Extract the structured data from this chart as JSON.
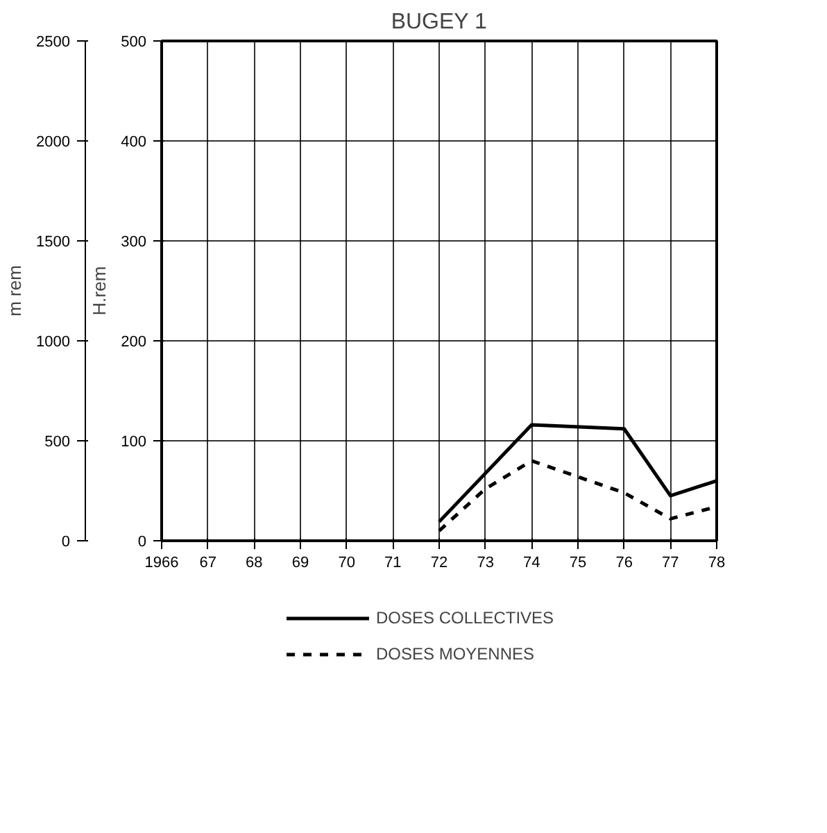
{
  "chart_data": {
    "type": "line",
    "title": "BUGEY 1",
    "ylabel": "H.rem",
    "y2label": "m rem",
    "categories": [
      "1966",
      "67",
      "68",
      "69",
      "70",
      "71",
      "72",
      "73",
      "74",
      "75",
      "76",
      "77",
      "78"
    ],
    "series": [
      {
        "name": "DOSES COLLECTIVES",
        "color": "#000000",
        "line_style": "solid",
        "values": [
          null,
          null,
          null,
          null,
          null,
          null,
          19,
          null,
          116,
          null,
          112,
          45,
          60
        ]
      },
      {
        "name": "DOSES MOYENNES",
        "color": "#000000",
        "line_style": "dashed",
        "axis": "y2",
        "values": [
          null,
          null,
          null,
          null,
          null,
          null,
          50,
          260,
          400,
          320,
          240,
          110,
          170
        ]
      }
    ],
    "ylim": [
      0,
      500
    ],
    "yticks": [
      0,
      100,
      200,
      300,
      400,
      500
    ],
    "y2lim": [
      0,
      2500
    ],
    "y2ticks": [
      0,
      500,
      1000,
      1500,
      2000,
      2500
    ],
    "grid": true,
    "legend": "bottom"
  }
}
